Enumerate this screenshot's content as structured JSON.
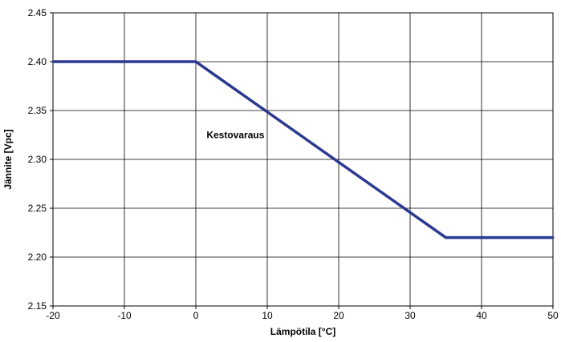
{
  "chart_data": {
    "type": "line",
    "title": "",
    "xlabel": "Lämpötila [°C]",
    "ylabel": "Jännite [Vpc]",
    "xlim": [
      -20,
      50
    ],
    "ylim": [
      2.15,
      2.45
    ],
    "xticks": [
      "-20",
      "-10",
      "0",
      "10",
      "20",
      "30",
      "40",
      "50"
    ],
    "yticks": [
      "2.15",
      "2.20",
      "2.25",
      "2.30",
      "2.35",
      "2.40",
      "2.45"
    ],
    "grid": true,
    "series": [
      {
        "color": "#2b3990",
        "x": [
          -20,
          0,
          35,
          50
        ],
        "y": [
          2.4,
          2.4,
          2.22,
          2.22
        ]
      }
    ],
    "annotations": [
      {
        "text": "Kestovaraus",
        "x": 1.5,
        "y": 2.325
      }
    ]
  }
}
